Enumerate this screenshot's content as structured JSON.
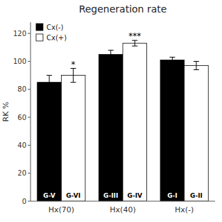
{
  "chart_data": {
    "type": "bar",
    "title": "Regeneration rate",
    "ylabel": "RK %",
    "categories": [
      "Hx(70)",
      "Hx(40)",
      "Hx(-)"
    ],
    "series": [
      {
        "name": "Cx(-)",
        "color": "#000000",
        "values": [
          85,
          105,
          101
        ],
        "errors": [
          5,
          3,
          2
        ],
        "bar_labels": [
          "G-V",
          "G-III",
          "G-I"
        ],
        "annotations": [
          null,
          null,
          null
        ]
      },
      {
        "name": "Cx(+)",
        "color": "#ffffff",
        "values": [
          90,
          113,
          97
        ],
        "errors": [
          5,
          2,
          3
        ],
        "bar_labels": [
          "G-VI",
          "G-IV",
          "G-II"
        ],
        "annotations": [
          "*",
          "***",
          null
        ]
      }
    ],
    "ylim": [
      0,
      128
    ],
    "yticks": [
      0,
      20,
      40,
      60,
      80,
      100,
      120
    ],
    "grid": false,
    "legend": "upper left"
  }
}
